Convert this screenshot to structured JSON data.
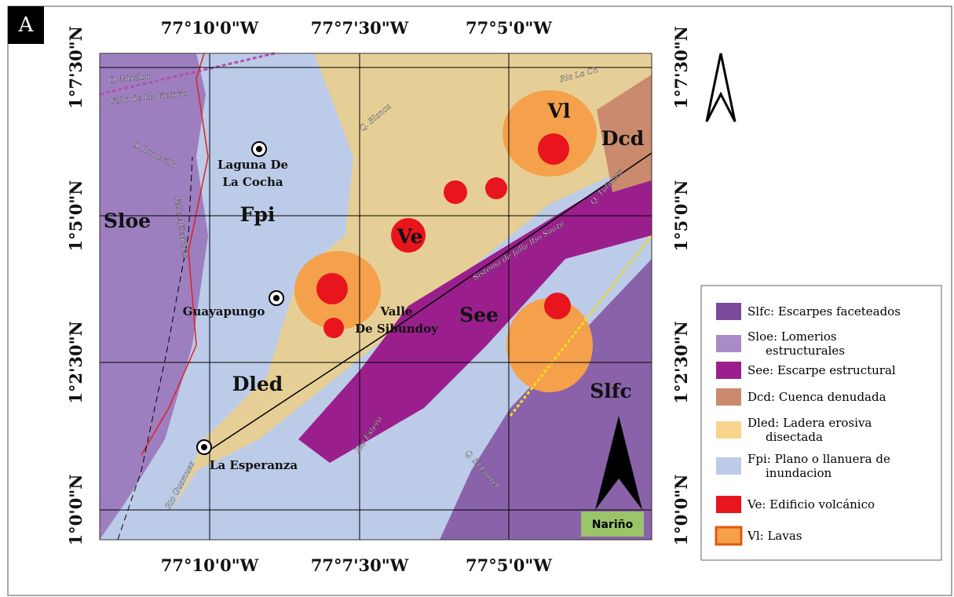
{
  "panel_label": "A",
  "coordinates": {
    "top": [
      "77°10'0\"W",
      "77°7'30\"W",
      "77°5'0\"W"
    ],
    "bottom": [
      "77°10'0\"W",
      "77°7'30\"W",
      "77°5'0\"W"
    ],
    "left": [
      "1°7'30\"N",
      "1°5'0\"N",
      "1°2'30\"N",
      "1°0'0\"N"
    ],
    "right": [
      "1°7'30\"N",
      "1°5'0\"N",
      "1°2'30\"N",
      "1°0'0\"N"
    ]
  },
  "map_labels": {
    "units": [
      "Sloe",
      "Fpi",
      "Ve",
      "Vl",
      "Dcd",
      "See",
      "Dled",
      "Slfc"
    ],
    "places": [
      {
        "lines": [
          "Laguna De",
          "La Cocha"
        ]
      },
      {
        "lines": [
          "Guayapungo"
        ]
      },
      {
        "lines": [
          "Valle",
          "De Sibundoy"
        ]
      },
      {
        "lines": [
          "La Esperanza"
        ]
      }
    ],
    "features": [
      "Q. Motilon",
      "Fallo de La Victoria",
      "Q. Romerillo",
      "Falla Afiladores",
      "Q. Blanca",
      "Rio La Ch",
      "Q. Tutisaca",
      "Sistema de falla Rio Suaza",
      "Rio Estero",
      "Q. El Laurel",
      "Rio Guamuez"
    ],
    "region": "Nariño"
  },
  "legend": {
    "items": [
      {
        "label": "Slfc: Escarpes faceteados",
        "color": "#7b4b9c"
      },
      {
        "label": "Sloe: Lomerios estructurales",
        "color": "#a98bc6"
      },
      {
        "label": "See: Escarpe estructural",
        "color": "#9a1f8c"
      },
      {
        "label": "Dcd: Cuenca denudada",
        "color": "#c98a6e"
      },
      {
        "label": "Dled: Ladera erosiva disectada",
        "color": "#f8d48c"
      },
      {
        "label": "Fpi: Plano o llanuera de inundacion",
        "color": "#bccbe8"
      },
      {
        "label": "Ve: Edificio volcánico",
        "color": "#e8141e"
      },
      {
        "label": "Vl: Lavas",
        "color": "#f5a04a"
      }
    ]
  }
}
